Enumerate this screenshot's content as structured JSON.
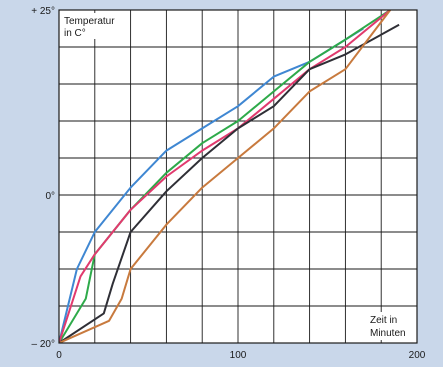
{
  "chart_data": {
    "type": "line",
    "xlabel_lines": [
      "Zeit in",
      "Minuten"
    ],
    "ylabel_lines": [
      "Temperatur",
      "in C°"
    ],
    "xlim": [
      0,
      200
    ],
    "ylim": [
      -20,
      25
    ],
    "x_ticks": [
      {
        "value": 0,
        "label": "0"
      },
      {
        "value": 100,
        "label": "100"
      },
      {
        "value": 200,
        "label": "200"
      }
    ],
    "y_ticks": [
      {
        "value": 25,
        "label": "+ 25°"
      },
      {
        "value": 0,
        "label": "0°"
      },
      {
        "value": -20,
        "label": "– 20°"
      }
    ],
    "grid": true,
    "series": [
      {
        "color": "#3f87d2",
        "x": [
          0,
          10,
          20,
          40,
          60,
          80,
          100,
          120,
          140,
          160,
          170
        ],
        "y": [
          -20,
          -10,
          -5,
          1,
          6,
          9,
          12,
          16,
          18,
          21,
          22.5
        ]
      },
      {
        "color": "#2eaa4a",
        "x": [
          0,
          15,
          20,
          40,
          60,
          80,
          100,
          120,
          140,
          160,
          185
        ],
        "y": [
          -20,
          -14,
          -8,
          -2,
          3,
          7,
          10,
          14,
          18,
          21,
          25
        ]
      },
      {
        "color": "#e13a6e",
        "x": [
          0,
          12,
          20,
          40,
          60,
          80,
          100,
          120,
          140,
          160,
          185
        ],
        "y": [
          -20,
          -11,
          -8,
          -2,
          2.5,
          6,
          9,
          13,
          17,
          20,
          25
        ]
      },
      {
        "color": "#2f2f36",
        "x": [
          0,
          25,
          30,
          40,
          60,
          80,
          100,
          120,
          140,
          160,
          190
        ],
        "y": [
          -20,
          -16,
          -12,
          -5,
          0.5,
          5,
          9,
          12,
          17,
          19,
          23
        ]
      },
      {
        "color": "#c87a3e",
        "x": [
          0,
          28,
          35,
          40,
          60,
          80,
          100,
          120,
          140,
          160,
          185
        ],
        "y": [
          -20,
          -17,
          -14,
          -10,
          -4,
          1,
          5,
          9,
          14,
          17,
          25
        ]
      }
    ]
  }
}
